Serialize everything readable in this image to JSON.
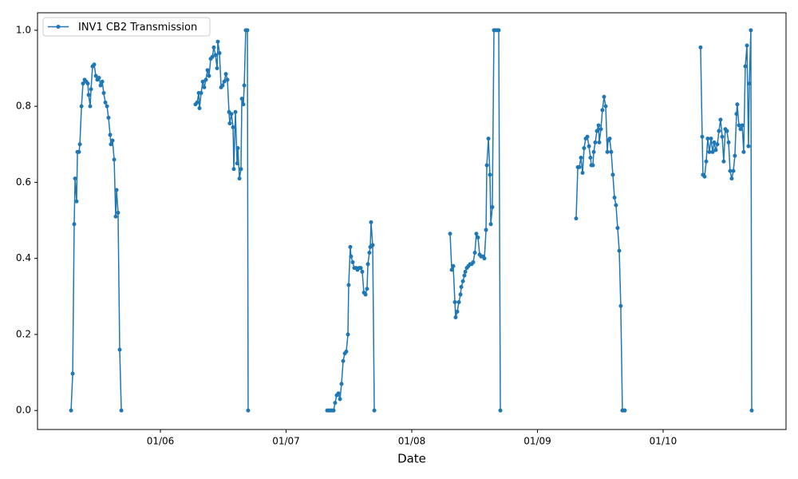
{
  "chart_data": {
    "type": "line",
    "xlabel": "Date",
    "x": [
      5.289,
      5.302,
      5.314,
      5.321,
      5.333,
      5.34,
      5.352,
      5.359,
      5.372,
      5.384,
      5.397,
      5.41,
      5.422,
      5.429,
      5.441,
      5.448,
      5.46,
      5.473,
      5.486,
      5.498,
      5.511,
      5.524,
      5.537,
      5.549,
      5.562,
      5.575,
      5.587,
      5.6,
      5.606,
      5.619,
      5.632,
      5.644,
      5.651,
      5.663,
      5.676,
      5.689,
      null,
      6.279,
      6.292,
      6.305,
      6.311,
      6.324,
      6.337,
      6.349,
      6.362,
      6.375,
      6.387,
      6.4,
      6.413,
      6.425,
      6.438,
      6.451,
      6.457,
      6.47,
      6.483,
      6.495,
      6.508,
      6.521,
      6.533,
      6.546,
      6.552,
      6.565,
      6.578,
      6.584,
      6.597,
      6.61,
      6.616,
      6.629,
      6.641,
      6.648,
      6.66,
      6.667,
      6.679,
      6.692,
      6.698,
      null,
      7.327,
      7.34,
      7.352,
      7.365,
      7.378,
      7.39,
      7.403,
      7.416,
      7.429,
      7.441,
      7.454,
      7.467,
      7.479,
      7.492,
      7.498,
      7.511,
      7.517,
      7.53,
      7.543,
      7.556,
      7.568,
      7.581,
      7.594,
      7.606,
      7.619,
      7.632,
      7.644,
      7.651,
      7.663,
      7.67,
      7.676,
      7.689,
      7.702,
      null,
      8.305,
      8.318,
      8.33,
      8.343,
      8.349,
      8.362,
      8.375,
      8.388,
      8.394,
      8.407,
      8.419,
      8.426,
      8.438,
      8.451,
      8.464,
      8.476,
      8.489,
      8.502,
      8.514,
      8.527,
      8.54,
      8.552,
      8.565,
      8.578,
      8.591,
      8.597,
      8.61,
      8.622,
      8.629,
      8.641,
      8.654,
      8.667,
      8.679,
      8.692,
      8.705,
      null,
      9.308,
      9.321,
      9.333,
      9.346,
      9.359,
      9.371,
      9.384,
      9.397,
      9.41,
      9.422,
      9.429,
      9.441,
      9.448,
      9.46,
      9.473,
      9.486,
      9.492,
      9.505,
      9.517,
      9.53,
      9.543,
      9.556,
      9.562,
      9.575,
      9.587,
      9.6,
      9.613,
      9.625,
      9.638,
      9.651,
      9.663,
      9.676,
      9.689,
      9.695,
      null,
      10.298,
      10.311,
      10.317,
      10.33,
      10.343,
      10.355,
      10.368,
      10.381,
      10.394,
      10.406,
      10.419,
      10.432,
      10.444,
      10.457,
      10.47,
      10.482,
      10.495,
      10.508,
      10.521,
      10.533,
      10.546,
      10.559,
      10.571,
      10.584,
      10.59,
      10.603,
      10.616,
      10.629,
      10.641,
      10.654,
      10.667,
      10.679,
      10.686,
      10.698,
      10.705
    ],
    "series": [
      {
        "name": "INV1 CB2 Transmission",
        "color": "#1f77b4",
        "values": [
          0.0,
          0.097,
          0.49,
          0.61,
          0.55,
          0.68,
          0.68,
          0.7,
          0.8,
          0.86,
          0.87,
          0.865,
          0.86,
          0.83,
          0.8,
          0.845,
          0.905,
          0.91,
          0.88,
          0.87,
          0.875,
          0.855,
          0.865,
          0.835,
          0.81,
          0.8,
          0.77,
          0.725,
          0.7,
          0.71,
          0.66,
          0.51,
          0.58,
          0.52,
          0.16,
          0.0,
          null,
          0.805,
          0.81,
          0.835,
          0.795,
          0.835,
          0.865,
          0.85,
          0.87,
          0.895,
          0.88,
          0.925,
          0.93,
          0.955,
          0.935,
          0.9,
          0.97,
          0.94,
          0.85,
          0.855,
          0.865,
          0.885,
          0.87,
          0.785,
          0.755,
          0.78,
          0.745,
          0.635,
          0.785,
          0.65,
          0.69,
          0.61,
          0.635,
          0.82,
          0.805,
          0.855,
          1.0,
          1.0,
          0.0,
          null,
          0.0,
          0.0,
          0.0,
          0.0,
          0.0,
          0.02,
          0.04,
          0.045,
          0.03,
          0.07,
          0.13,
          0.15,
          0.155,
          0.2,
          0.33,
          0.43,
          0.405,
          0.39,
          0.375,
          0.375,
          0.37,
          0.375,
          0.375,
          0.365,
          0.31,
          0.305,
          0.32,
          0.385,
          0.415,
          0.43,
          0.495,
          0.435,
          0.0,
          null,
          0.465,
          0.37,
          0.38,
          0.285,
          0.245,
          0.26,
          0.285,
          0.305,
          0.325,
          0.34,
          0.355,
          0.365,
          0.375,
          0.38,
          0.385,
          0.385,
          0.39,
          0.415,
          0.465,
          0.455,
          0.41,
          0.405,
          0.405,
          0.4,
          0.475,
          0.645,
          0.715,
          0.62,
          0.49,
          0.535,
          1.0,
          1.0,
          1.0,
          1.0,
          0.0,
          null,
          0.505,
          0.64,
          0.64,
          0.665,
          0.625,
          0.69,
          0.715,
          0.72,
          0.695,
          0.665,
          0.645,
          0.645,
          0.68,
          0.705,
          0.735,
          0.75,
          0.705,
          0.74,
          0.79,
          0.825,
          0.8,
          0.68,
          0.71,
          0.715,
          0.68,
          0.62,
          0.56,
          0.54,
          0.48,
          0.42,
          0.275,
          0.0,
          0.0,
          0.0,
          null,
          0.955,
          0.72,
          0.62,
          0.615,
          0.655,
          0.715,
          0.68,
          0.715,
          0.68,
          0.705,
          0.685,
          0.7,
          0.735,
          0.765,
          0.72,
          0.655,
          0.74,
          0.735,
          0.705,
          0.63,
          0.61,
          0.63,
          0.67,
          0.78,
          0.805,
          0.75,
          0.74,
          0.75,
          0.68,
          0.905,
          0.96,
          0.695,
          0.86,
          1.0,
          0.0
        ]
      }
    ],
    "xlim": [
      5.022,
      10.978
    ],
    "ylim": [
      -0.05,
      1.046
    ],
    "xticks": [
      {
        "value": 6,
        "label": "01/06"
      },
      {
        "value": 7,
        "label": "01/07"
      },
      {
        "value": 8,
        "label": "01/08"
      },
      {
        "value": 9,
        "label": "01/09"
      },
      {
        "value": 10,
        "label": "01/10"
      }
    ],
    "yticks": [
      {
        "value": 0,
        "label": "0.0"
      },
      0.2,
      0.4,
      0.6,
      0.8,
      {
        "value": 1,
        "label": "1.0"
      }
    ],
    "grid": false,
    "legend": "upper left"
  }
}
